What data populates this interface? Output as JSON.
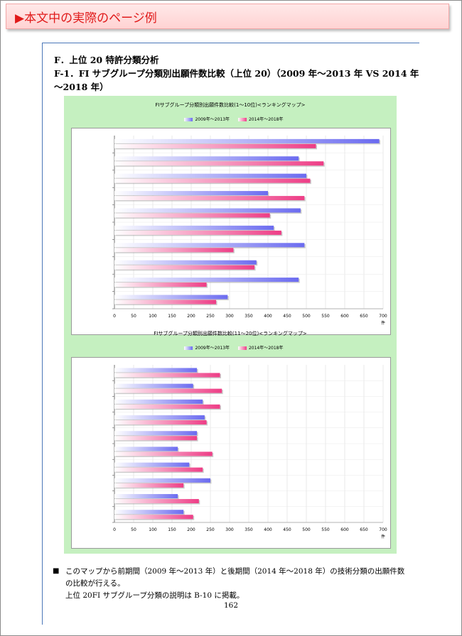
{
  "banner": {
    "title": "▶本文中の実際のページ例"
  },
  "section": {
    "heading": "F．上位 20 特許分類分析",
    "subheading": "F-1．FI サブグループ分類別出願件数比較（上位 20）（2009 年～2013 年 VS 2014 年～2018 年）"
  },
  "colors": {
    "series1": "#6b6bf0",
    "series2": "#ee3d86",
    "panel": "#c5f0c0"
  },
  "chart_data": [
    {
      "type": "bar",
      "orientation": "horizontal",
      "title": "FIサブグループ分類別出願件数比較(1～10位)<ランキングマップ>",
      "xlabel": "件",
      "xlim": [
        0,
        700
      ],
      "xticks": [
        0,
        50,
        100,
        150,
        200,
        250,
        300,
        350,
        400,
        450,
        500,
        550,
        600,
        650,
        700
      ],
      "categories": [
        "",
        "",
        "",
        "",
        "",
        "",
        "",
        "",
        "",
        ""
      ],
      "series": [
        {
          "name": "2009年～2013年",
          "values": [
            690,
            480,
            500,
            400,
            485,
            415,
            495,
            370,
            480,
            295
          ]
        },
        {
          "name": "2014年～2018年",
          "values": [
            525,
            545,
            510,
            495,
            405,
            435,
            310,
            365,
            240,
            265
          ]
        }
      ],
      "grid": true,
      "legend": "top"
    },
    {
      "type": "bar",
      "orientation": "horizontal",
      "title": "FIサブグループ分類別出願件数比較(11～20位)<ランキングマップ>",
      "xlabel": "件",
      "xlim": [
        0,
        700
      ],
      "xticks": [
        0,
        50,
        100,
        150,
        200,
        250,
        300,
        350,
        400,
        450,
        500,
        550,
        600,
        650,
        700
      ],
      "categories": [
        "",
        "",
        "",
        "",
        "",
        "",
        "",
        "",
        "",
        ""
      ],
      "series": [
        {
          "name": "2009年～2013年",
          "values": [
            215,
            205,
            230,
            235,
            215,
            165,
            195,
            250,
            165,
            180
          ]
        },
        {
          "name": "2014年～2018年",
          "values": [
            275,
            280,
            275,
            240,
            215,
            255,
            230,
            180,
            220,
            205
          ]
        }
      ],
      "grid": true,
      "legend": "top"
    }
  ],
  "footer": {
    "bullet": "■",
    "line1": "このマップから前期間（2009 年～2013 年）と後期間（2014 年～2018 年）の技術分類の出願件数",
    "line2": "の比較が行える。",
    "line3": "上位 20FI サブグループ分類の説明は B-10 に掲載。",
    "page_number": "162"
  }
}
